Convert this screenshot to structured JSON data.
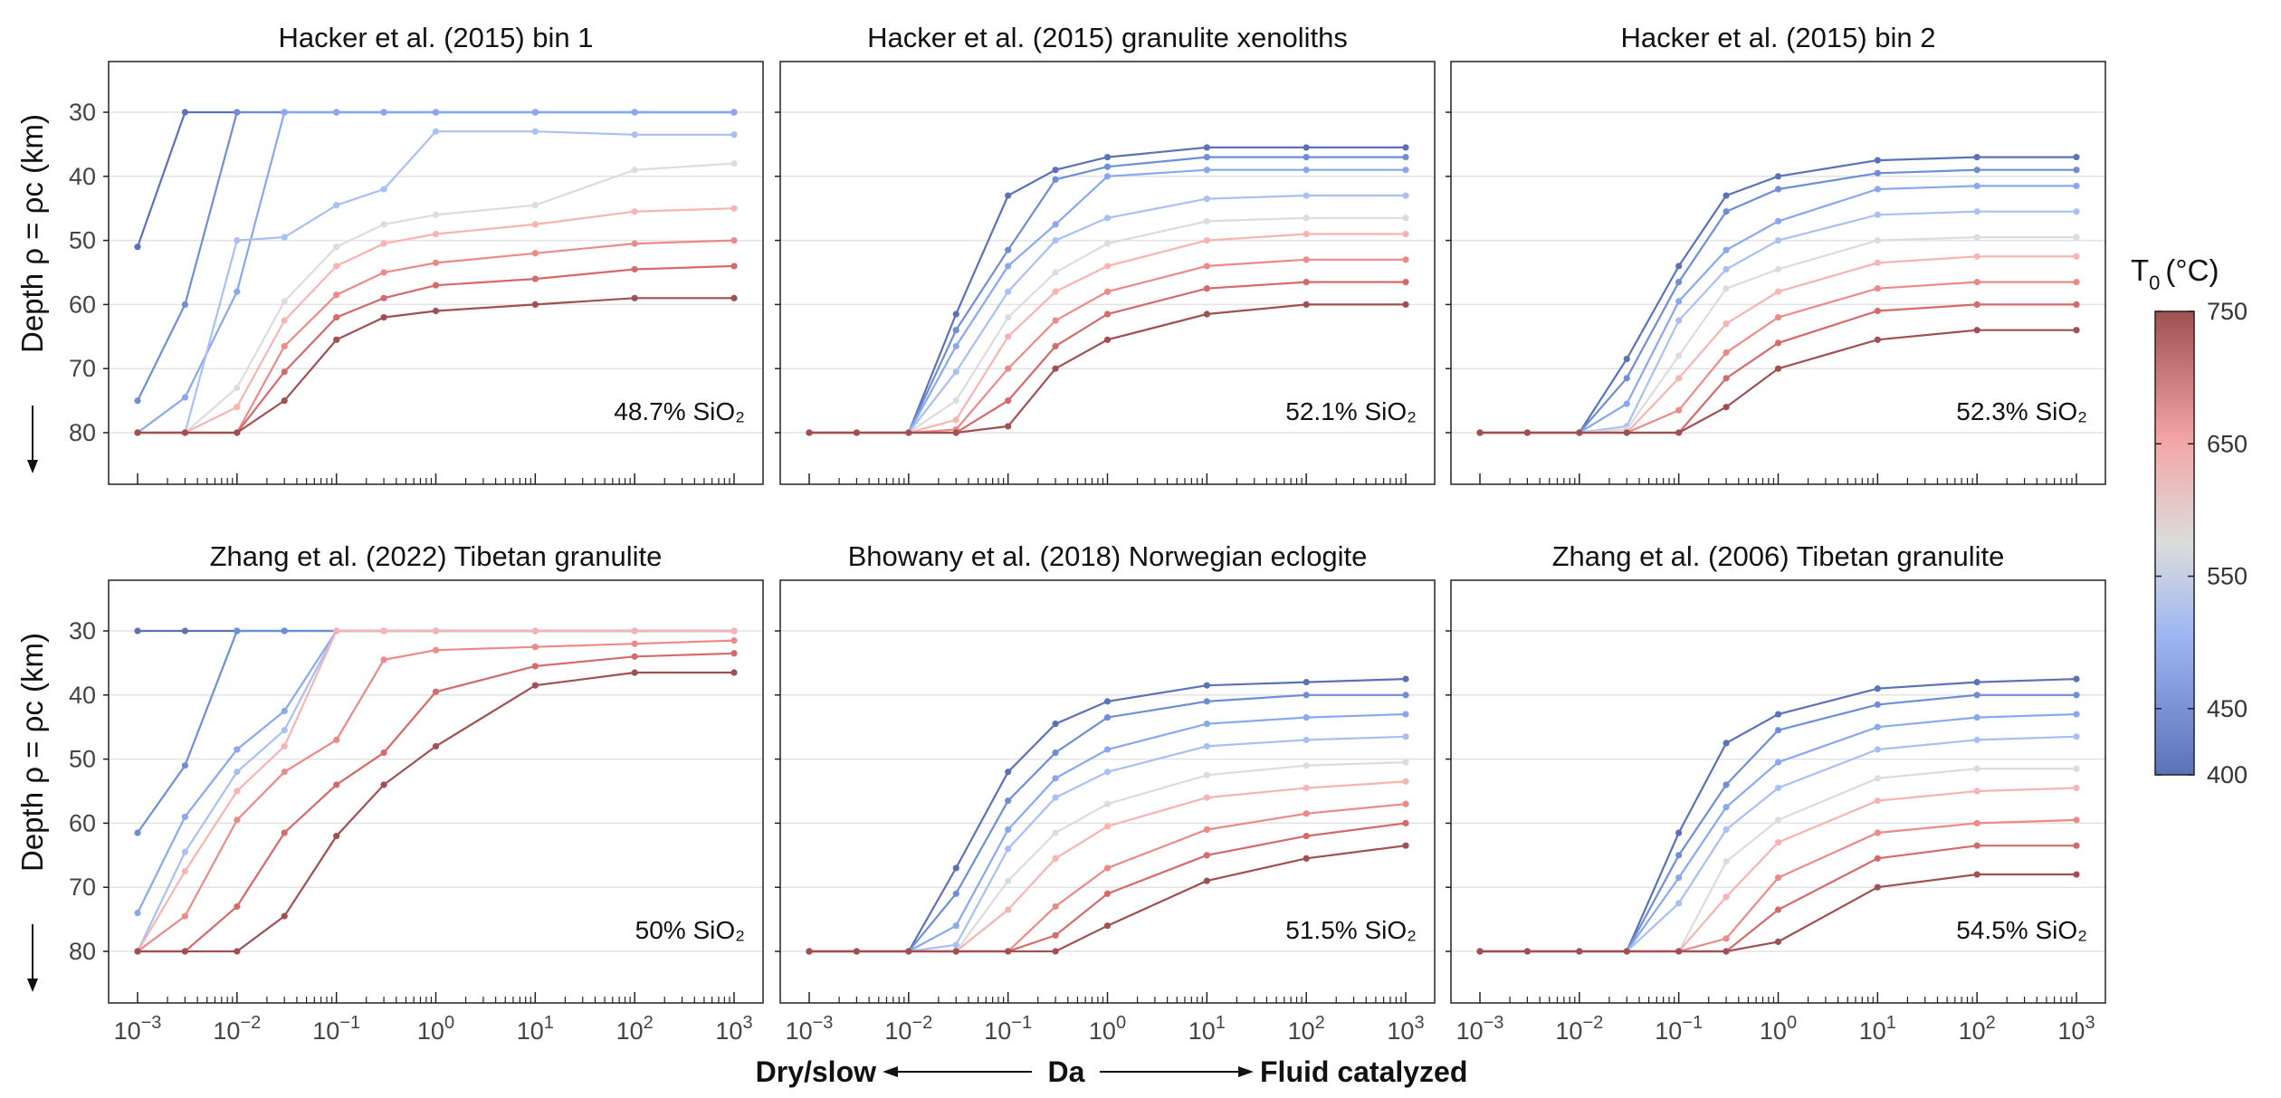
{
  "chart_data": {
    "type": "line",
    "ylabel": "Depth ρ = ρc (km)",
    "xlabel": "Da",
    "x_left_label": "Dry/slow",
    "x_right_label": "Fluid catalyzed",
    "x_scale": "log",
    "xlim": [
      0.001,
      1000
    ],
    "ylim_reversed": [
      80,
      30
    ],
    "y_ticks": [
      "30",
      "40",
      "50",
      "60",
      "70",
      "80"
    ],
    "x_ticks": [
      "-3",
      "-2",
      "-1",
      "0",
      "1",
      "2",
      "3"
    ],
    "x": [
      0.001,
      0.003,
      0.01,
      0.03,
      0.1,
      0.3,
      1,
      10,
      100,
      1000
    ],
    "colorbar": {
      "title_main": "T",
      "title_sub": "0",
      "title_unit": "(°C)",
      "ticks": [
        "750",
        "650",
        "550",
        "450",
        "400"
      ],
      "min": 400,
      "max": 750,
      "colors": [
        "#5b72b8",
        "#9db6f2",
        "#dcdcdc",
        "#f3a6a6",
        "#a05050"
      ]
    },
    "series_colors": [
      "#5b72b8",
      "#6e8ed6",
      "#88a8ef",
      "#a9c0f3",
      "#dcdcdc",
      "#f7b4b0",
      "#ec8a88",
      "#d46a6a",
      "#a05050"
    ],
    "panels": [
      {
        "title": "Hacker et al. (2015) bin 1",
        "note": "48.7% SiO₂",
        "series": [
          [
            51,
            30,
            30,
            30,
            30,
            30,
            30,
            30,
            30,
            30
          ],
          [
            75,
            60,
            30,
            30,
            30,
            30,
            30,
            30,
            30,
            30
          ],
          [
            80,
            74.5,
            58,
            30,
            30,
            30,
            30,
            30,
            30,
            30
          ],
          [
            80,
            80,
            50,
            49.5,
            44.5,
            42,
            33,
            33,
            33.5,
            33.5
          ],
          [
            80,
            80,
            73,
            59.5,
            51,
            47.5,
            46,
            44.5,
            39,
            38
          ],
          [
            80,
            80,
            76,
            62.5,
            54,
            50.5,
            49,
            47.5,
            45.5,
            45
          ],
          [
            80,
            80,
            80,
            66.5,
            58.5,
            55,
            53.5,
            52,
            50.5,
            50
          ],
          [
            80,
            80,
            80,
            70.5,
            62,
            59,
            57,
            56,
            54.5,
            54
          ],
          [
            80,
            80,
            80,
            75,
            65.5,
            62,
            61,
            60,
            59,
            59
          ]
        ]
      },
      {
        "title": "Hacker et al. (2015) granulite xenoliths",
        "note": "52.1% SiO₂",
        "series": [
          [
            80,
            80,
            80,
            61.5,
            43,
            39,
            37,
            35.5,
            35.5,
            35.5
          ],
          [
            80,
            80,
            80,
            64,
            51.5,
            40.5,
            38.5,
            37,
            37,
            37
          ],
          [
            80,
            80,
            80,
            66.5,
            54,
            47.5,
            40,
            39,
            39,
            39
          ],
          [
            80,
            80,
            80,
            70.5,
            58,
            50,
            46.5,
            43.5,
            43,
            43
          ],
          [
            80,
            80,
            80,
            75,
            62,
            55,
            50.5,
            47,
            46.5,
            46.5
          ],
          [
            80,
            80,
            80,
            78,
            65,
            58,
            54,
            50,
            49,
            49
          ],
          [
            80,
            80,
            80,
            79.5,
            70,
            62.5,
            58,
            54,
            53,
            53
          ],
          [
            80,
            80,
            80,
            80,
            75,
            66.5,
            61.5,
            57.5,
            56.5,
            56.5
          ],
          [
            80,
            80,
            80,
            80,
            79,
            70,
            65.5,
            61.5,
            60,
            60
          ]
        ]
      },
      {
        "title": "Hacker et al. (2015) bin 2",
        "note": "52.3% SiO₂",
        "series": [
          [
            80,
            80,
            80,
            68.5,
            54,
            43,
            40,
            37.5,
            37,
            37
          ],
          [
            80,
            80,
            80,
            71.5,
            56.5,
            45.5,
            42,
            39.5,
            39,
            39
          ],
          [
            80,
            80,
            80,
            75.5,
            59.5,
            51.5,
            47,
            42,
            41.5,
            41.5
          ],
          [
            80,
            80,
            80,
            79,
            62.5,
            54.5,
            50,
            46,
            45.5,
            45.5
          ],
          [
            80,
            80,
            80,
            79.5,
            68,
            57.5,
            54.5,
            50,
            49.5,
            49.5
          ],
          [
            80,
            80,
            80,
            80,
            71.5,
            63,
            58,
            53.5,
            52.5,
            52.5
          ],
          [
            80,
            80,
            80,
            80,
            76.5,
            67.5,
            62,
            57.5,
            56.5,
            56.5
          ],
          [
            80,
            80,
            80,
            80,
            80,
            71.5,
            66,
            61,
            60,
            60
          ],
          [
            80,
            80,
            80,
            80,
            80,
            76,
            70,
            65.5,
            64,
            64
          ]
        ]
      },
      {
        "title": "Zhang et al. (2022) Tibetan granulite",
        "note": "50% SiO₂",
        "series": [
          [
            30,
            30,
            30,
            30,
            30,
            30,
            30,
            30,
            30,
            30
          ],
          [
            61.5,
            51,
            30,
            30,
            30,
            30,
            30,
            30,
            30,
            30
          ],
          [
            74,
            59,
            48.5,
            42.5,
            30,
            30,
            30,
            30,
            30,
            30
          ],
          [
            80,
            64.5,
            52,
            45.5,
            30,
            30,
            30,
            30,
            30,
            30
          ],
          [
            80,
            67.5,
            55,
            48,
            30,
            30,
            30,
            30,
            30,
            30
          ],
          [
            80,
            74.5,
            59.5,
            52,
            47,
            34.5,
            33,
            32.5,
            32,
            31.5
          ],
          [
            80,
            80,
            73,
            61.5,
            54,
            49,
            39.5,
            35.5,
            34,
            33.5
          ],
          [
            80,
            80,
            80,
            74.5,
            62,
            54,
            48,
            38.5,
            36.5,
            36.5
          ]
        ]
      },
      {
        "title": "Bhowany et al. (2018) Norwegian eclogite",
        "note": "51.5% SiO₂",
        "series": [
          [
            80,
            80,
            80,
            67,
            52,
            44.5,
            41,
            38.5,
            38,
            37.5
          ],
          [
            80,
            80,
            80,
            71,
            56.5,
            49,
            43.5,
            41,
            40,
            40
          ],
          [
            80,
            80,
            80,
            76,
            61,
            53,
            48.5,
            44.5,
            43.5,
            43
          ],
          [
            80,
            80,
            80,
            79,
            64,
            56,
            52,
            48,
            47,
            46.5
          ],
          [
            80,
            80,
            80,
            80,
            69,
            61.5,
            57,
            52.5,
            51,
            50.5
          ],
          [
            80,
            80,
            80,
            80,
            73.5,
            65.5,
            60.5,
            56,
            54.5,
            53.5
          ],
          [
            80,
            80,
            80,
            80,
            80,
            73,
            67,
            61,
            58.5,
            57
          ],
          [
            80,
            80,
            80,
            80,
            80,
            77.5,
            71,
            65,
            62,
            60
          ],
          [
            80,
            80,
            80,
            80,
            80,
            80,
            76,
            69,
            65.5,
            63.5
          ]
        ]
      },
      {
        "title": "Zhang et al. (2006) Tibetan granulite",
        "note": "54.5% SiO₂",
        "series": [
          [
            80,
            80,
            80,
            80,
            61.5,
            47.5,
            43,
            39,
            38,
            37.5
          ],
          [
            80,
            80,
            80,
            80,
            65,
            54,
            45.5,
            41.5,
            40,
            40
          ],
          [
            80,
            80,
            80,
            80,
            68.5,
            57.5,
            50.5,
            45,
            43.5,
            43
          ],
          [
            80,
            80,
            80,
            80,
            72.5,
            61,
            54.5,
            48.5,
            47,
            46.5
          ],
          [
            80,
            80,
            80,
            80,
            80,
            66,
            59.5,
            53,
            51.5,
            51.5
          ],
          [
            80,
            80,
            80,
            80,
            80,
            71.5,
            63,
            56.5,
            55,
            54.5
          ],
          [
            80,
            80,
            80,
            80,
            80,
            78,
            68.5,
            61.5,
            60,
            59.5
          ],
          [
            80,
            80,
            80,
            80,
            80,
            80,
            73.5,
            65.5,
            63.5,
            63.5
          ],
          [
            80,
            80,
            80,
            80,
            80,
            80,
            78.5,
            70,
            68,
            68
          ]
        ]
      }
    ]
  }
}
